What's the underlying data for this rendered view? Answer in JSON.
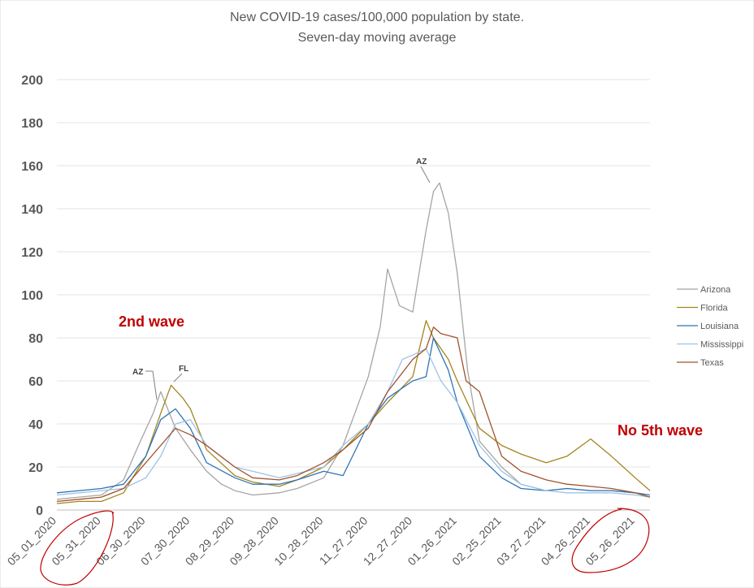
{
  "chart_data": {
    "type": "line",
    "title": "New COVID-19 cases/100,000 population by state.",
    "subtitle": "Seven-day moving average",
    "ylim": [
      0,
      200
    ],
    "yticks": [
      0,
      20,
      40,
      60,
      80,
      100,
      120,
      140,
      160,
      180,
      200
    ],
    "xticks": [
      "05_01_2020",
      "05_31_2020",
      "06_30_2020",
      "07_30_2020",
      "08_29_2020",
      "09_28_2020",
      "10_28_2020",
      "11_27_2020",
      "12_27_2020",
      "01_26_2021",
      "02_25_2021",
      "03_27_2021",
      "04_26_2021",
      "05_26_2021"
    ],
    "grid": true,
    "legend_position": "right",
    "series": [
      {
        "name": "Arizona",
        "color": "#a5a5a5",
        "x": [
          "05_01_2020",
          "05_16_2020",
          "05_31_2020",
          "06_15_2020",
          "06_25_2020",
          "07_05_2020",
          "07_10_2020",
          "07_20_2020",
          "07_30_2020",
          "08_10_2020",
          "08_20_2020",
          "08_29_2020",
          "09_10_2020",
          "09_28_2020",
          "10_10_2020",
          "10_28_2020",
          "11_10_2020",
          "11_27_2020",
          "12_05_2020",
          "12_10_2020",
          "12_18_2020",
          "12_27_2020",
          "01_05_2021",
          "01_10_2021",
          "01_14_2021",
          "01_20_2021",
          "01_26_2021",
          "02_02_2021",
          "02_10_2021",
          "02_25_2021",
          "03_10_2021",
          "03_27_2021",
          "04_10_2021",
          "04_26_2021",
          "05_10_2021",
          "05_26_2021",
          "06_05_2021"
        ],
        "y": [
          5,
          6,
          7,
          14,
          30,
          45,
          55,
          38,
          28,
          18,
          12,
          9,
          7,
          8,
          10,
          15,
          30,
          62,
          85,
          112,
          95,
          92,
          130,
          148,
          152,
          138,
          110,
          65,
          32,
          20,
          12,
          9,
          10,
          9,
          9,
          8,
          6
        ]
      },
      {
        "name": "Florida",
        "color": "#a5841e",
        "x": [
          "05_01_2020",
          "05_16_2020",
          "05_31_2020",
          "06_15_2020",
          "06_30_2020",
          "07_10_2020",
          "07_17_2020",
          "07_25_2020",
          "07_30_2020",
          "08_10_2020",
          "08_29_2020",
          "09_10_2020",
          "09_28_2020",
          "10_10_2020",
          "10_28_2020",
          "11_10_2020",
          "11_27_2020",
          "12_10_2020",
          "12_27_2020",
          "01_05_2021",
          "01_10_2021",
          "01_20_2021",
          "01_26_2021",
          "02_10_2021",
          "02_25_2021",
          "03_10_2021",
          "03_27_2021",
          "04_10_2021",
          "04_20_2021",
          "04_26_2021",
          "05_10_2021",
          "05_26_2021",
          "06_05_2021"
        ],
        "y": [
          3,
          4,
          4,
          8,
          25,
          45,
          58,
          52,
          47,
          28,
          16,
          13,
          11,
          14,
          20,
          28,
          40,
          50,
          62,
          88,
          80,
          70,
          60,
          38,
          30,
          26,
          22,
          25,
          30,
          33,
          25,
          15,
          9
        ]
      },
      {
        "name": "Louisiana",
        "color": "#2e75b6",
        "x": [
          "05_01_2020",
          "05_16_2020",
          "05_31_2020",
          "06_15_2020",
          "06_30_2020",
          "07_10_2020",
          "07_20_2020",
          "07_30_2020",
          "08_10_2020",
          "08_29_2020",
          "09_10_2020",
          "09_28_2020",
          "10_10_2020",
          "10_28_2020",
          "11_10_2020",
          "11_27_2020",
          "12_10_2020",
          "12_27_2020",
          "01_05_2021",
          "01_10_2021",
          "01_20_2021",
          "01_26_2021",
          "02_10_2021",
          "02_25_2021",
          "03_10_2021",
          "03_27_2021",
          "04_10_2021",
          "04_26_2021",
          "05_10_2021",
          "05_26_2021",
          "06_05_2021"
        ],
        "y": [
          8,
          9,
          10,
          12,
          25,
          42,
          47,
          38,
          22,
          15,
          12,
          12,
          14,
          18,
          16,
          40,
          52,
          60,
          62,
          80,
          65,
          50,
          25,
          15,
          10,
          9,
          10,
          9,
          9,
          8,
          7
        ]
      },
      {
        "name": "Mississippi",
        "color": "#9dc3e6",
        "x": [
          "05_01_2020",
          "05_16_2020",
          "05_31_2020",
          "06_15_2020",
          "06_30_2020",
          "07_10_2020",
          "07_20_2020",
          "07_30_2020",
          "08_10_2020",
          "08_29_2020",
          "09_10_2020",
          "09_28_2020",
          "10_10_2020",
          "10_28_2020",
          "11_10_2020",
          "11_27_2020",
          "12_10_2020",
          "12_20_2020",
          "12_27_2020",
          "01_05_2021",
          "01_15_2021",
          "01_26_2021",
          "02_10_2021",
          "02_25_2021",
          "03_10_2021",
          "03_27_2021",
          "04_10_2021",
          "04_26_2021",
          "05_10_2021",
          "05_26_2021",
          "06_05_2021"
        ],
        "y": [
          7,
          8,
          9,
          10,
          15,
          25,
          40,
          42,
          30,
          20,
          18,
          15,
          17,
          20,
          30,
          40,
          55,
          70,
          72,
          75,
          60,
          50,
          30,
          18,
          12,
          9,
          8,
          8,
          8,
          7,
          6
        ]
      },
      {
        "name": "Texas",
        "color": "#a0522d",
        "x": [
          "05_01_2020",
          "05_16_2020",
          "05_31_2020",
          "06_15_2020",
          "06_30_2020",
          "07_10_2020",
          "07_20_2020",
          "07_30_2020",
          "08_10_2020",
          "08_29_2020",
          "09_10_2020",
          "09_28_2020",
          "10_10_2020",
          "10_28_2020",
          "11_10_2020",
          "11_27_2020",
          "12_10_2020",
          "12_27_2020",
          "01_05_2021",
          "01_10_2021",
          "01_15_2021",
          "01_26_2021",
          "02_01_2021",
          "02_10_2021",
          "02_25_2021",
          "03_10_2021",
          "03_27_2021",
          "04_10_2021",
          "04_26_2021",
          "05_10_2021",
          "05_26_2021",
          "06_05_2021"
        ],
        "y": [
          4,
          5,
          6,
          10,
          22,
          30,
          38,
          35,
          30,
          20,
          15,
          14,
          16,
          22,
          28,
          38,
          55,
          70,
          75,
          85,
          82,
          80,
          60,
          55,
          25,
          18,
          14,
          12,
          11,
          10,
          8,
          6
        ]
      }
    ]
  },
  "annotations": {
    "az_peak_1": "AZ",
    "fl_peak": "FL",
    "az_peak_2": "AZ",
    "second_wave": "2nd wave",
    "no_fifth_wave": "No 5th wave",
    "callout_color": "#c00000",
    "circle_color": "#c00000"
  }
}
